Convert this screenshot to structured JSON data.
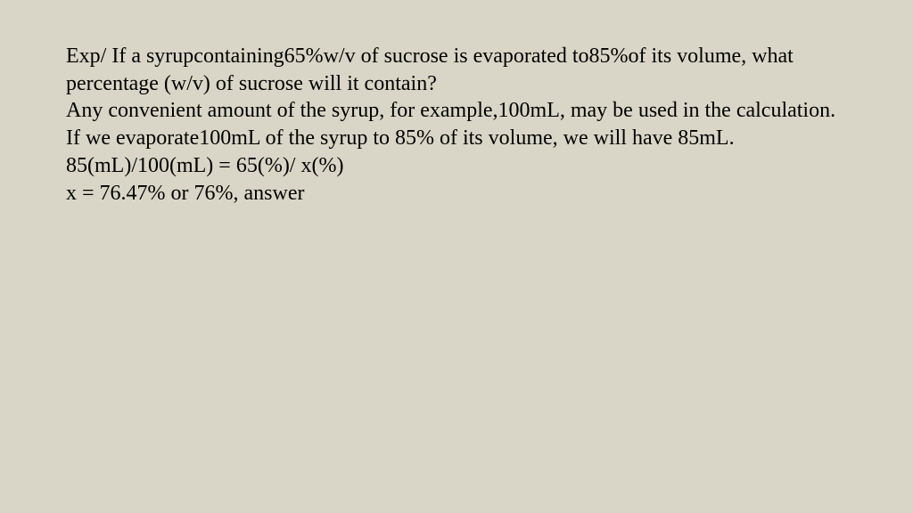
{
  "slide": {
    "background_color": "#d9d6c7",
    "text_color": "#000000",
    "font_family": "Times New Roman",
    "font_size_pt": 18,
    "lines": {
      "p1": " Exp/ If a syrupcontaining65%w/v of sucrose is evaporated to85%of its volume, what percentage (w/v) of sucrose will it contain?",
      "p2": " Any convenient amount of the syrup, for example,100mL, may be used in the calculation.",
      "p3": " If we evaporate100mL of the syrup to 85% of its volume, we will have 85mL.",
      "p4": " 85(mL)/100(mL) = 65(%)/ x(%)",
      "p5": " x = 76.47% or 76%, answer"
    }
  }
}
